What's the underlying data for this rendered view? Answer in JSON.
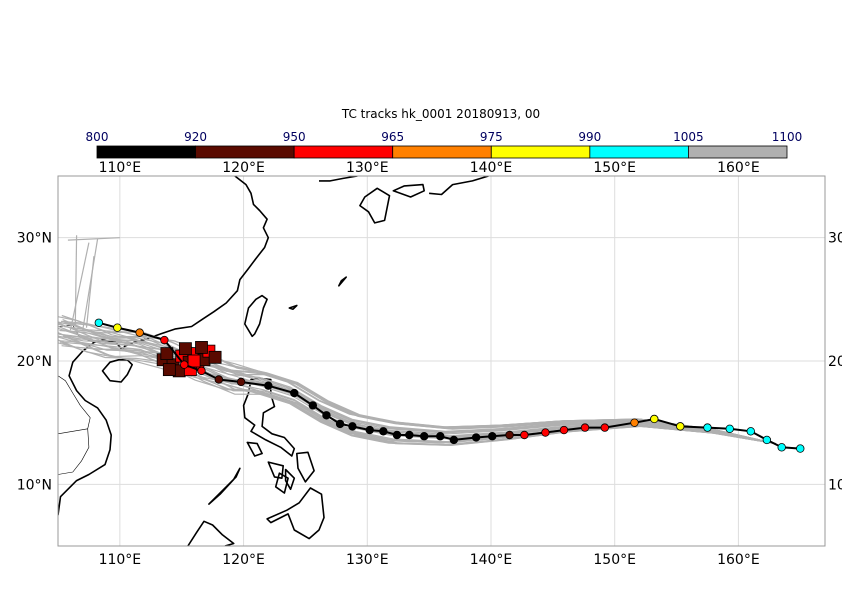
{
  "title": "TC tracks  hk_0001 20180913, 00",
  "colorbar": {
    "boundaries": [
      "800",
      "920",
      "950",
      "965",
      "975",
      "990",
      "1005",
      "1100"
    ],
    "colors": [
      "#000000",
      "#5a0a00",
      "#ff0000",
      "#ff8000",
      "#ffff00",
      "#00ffff",
      "#b0b0b0"
    ]
  },
  "map": {
    "lon_range": [
      105,
      167
    ],
    "lat_range": [
      5,
      35
    ],
    "lon_ticks": [
      {
        "value": 110,
        "label": "110°E"
      },
      {
        "value": 120,
        "label": "120°E"
      },
      {
        "value": 130,
        "label": "130°E"
      },
      {
        "value": 140,
        "label": "140°E"
      },
      {
        "value": 150,
        "label": "150°E"
      },
      {
        "value": 160,
        "label": "160°E"
      }
    ],
    "lat_ticks": [
      {
        "value": 10,
        "label": "10°N"
      },
      {
        "value": 20,
        "label": "20°N"
      },
      {
        "value": 30,
        "label": "30°N"
      }
    ],
    "right_lat_labels": [
      "10",
      "20",
      "30"
    ],
    "grid": true,
    "gridline_color": "#dddddd"
  },
  "chart_data": {
    "type": "scatter",
    "title": "TC tracks  hk_0001 20180913, 00",
    "xlabel": "",
    "ylabel": "",
    "xlim": [
      105,
      167
    ],
    "ylim": [
      5,
      35
    ],
    "ensemble_tracks_color": "#b0b0b0",
    "main_track": {
      "points": [
        {
          "lon": 165.0,
          "lat": 12.9,
          "color": "#00ffff"
        },
        {
          "lon": 163.5,
          "lat": 13.0,
          "color": "#00ffff"
        },
        {
          "lon": 162.3,
          "lat": 13.6,
          "color": "#00ffff"
        },
        {
          "lon": 161.0,
          "lat": 14.3,
          "color": "#00ffff"
        },
        {
          "lon": 159.3,
          "lat": 14.5,
          "color": "#00ffff"
        },
        {
          "lon": 157.5,
          "lat": 14.6,
          "color": "#00ffff"
        },
        {
          "lon": 155.3,
          "lat": 14.7,
          "color": "#ffff00"
        },
        {
          "lon": 153.2,
          "lat": 15.3,
          "color": "#ffff00"
        },
        {
          "lon": 151.6,
          "lat": 15.0,
          "color": "#ff8000"
        },
        {
          "lon": 149.2,
          "lat": 14.6,
          "color": "#ff0000"
        },
        {
          "lon": 147.6,
          "lat": 14.6,
          "color": "#ff0000"
        },
        {
          "lon": 145.9,
          "lat": 14.4,
          "color": "#ff0000"
        },
        {
          "lon": 144.4,
          "lat": 14.2,
          "color": "#ff0000"
        },
        {
          "lon": 142.7,
          "lat": 14.0,
          "color": "#ff0000"
        },
        {
          "lon": 141.5,
          "lat": 14.0,
          "color": "#5a0a00"
        },
        {
          "lon": 140.1,
          "lat": 13.9,
          "color": "#000000"
        },
        {
          "lon": 138.8,
          "lat": 13.8,
          "color": "#000000"
        },
        {
          "lon": 137.0,
          "lat": 13.6,
          "color": "#000000"
        },
        {
          "lon": 135.9,
          "lat": 13.9,
          "color": "#000000"
        },
        {
          "lon": 134.6,
          "lat": 13.9,
          "color": "#000000"
        },
        {
          "lon": 133.4,
          "lat": 14.0,
          "color": "#000000"
        },
        {
          "lon": 132.4,
          "lat": 14.0,
          "color": "#000000"
        },
        {
          "lon": 131.3,
          "lat": 14.3,
          "color": "#000000"
        },
        {
          "lon": 130.2,
          "lat": 14.4,
          "color": "#000000"
        },
        {
          "lon": 128.8,
          "lat": 14.7,
          "color": "#000000"
        },
        {
          "lon": 127.8,
          "lat": 14.9,
          "color": "#000000"
        },
        {
          "lon": 126.7,
          "lat": 15.6,
          "color": "#000000"
        },
        {
          "lon": 125.6,
          "lat": 16.4,
          "color": "#000000"
        },
        {
          "lon": 124.1,
          "lat": 17.4,
          "color": "#000000"
        },
        {
          "lon": 122.0,
          "lat": 18.0,
          "color": "#000000"
        },
        {
          "lon": 119.8,
          "lat": 18.3,
          "color": "#5a0a00"
        },
        {
          "lon": 118.0,
          "lat": 18.5,
          "color": "#5a0a00"
        },
        {
          "lon": 116.6,
          "lat": 19.2,
          "color": "#ff0000"
        },
        {
          "lon": 115.2,
          "lat": 19.7,
          "color": "#ff0000"
        },
        {
          "lon": 113.6,
          "lat": 21.7,
          "color": "#ff0000"
        },
        {
          "lon": 111.6,
          "lat": 22.3,
          "color": "#ff8000"
        },
        {
          "lon": 109.8,
          "lat": 22.7,
          "color": "#ffff00"
        },
        {
          "lon": 108.3,
          "lat": 23.1,
          "color": "#00ffff"
        }
      ]
    },
    "square_markers": [
      {
        "lon": 113.5,
        "lat": 20.1,
        "color": "#5a0a00"
      },
      {
        "lon": 114.3,
        "lat": 19.7,
        "color": "#5a0a00"
      },
      {
        "lon": 114.8,
        "lat": 19.2,
        "color": "#5a0a00"
      },
      {
        "lon": 115.0,
        "lat": 20.4,
        "color": "#ff0000"
      },
      {
        "lon": 115.6,
        "lat": 19.9,
        "color": "#5a0a00"
      },
      {
        "lon": 116.0,
        "lat": 20.6,
        "color": "#ff0000"
      },
      {
        "lon": 116.3,
        "lat": 19.7,
        "color": "#ff0000"
      },
      {
        "lon": 116.8,
        "lat": 20.1,
        "color": "#5a0a00"
      },
      {
        "lon": 117.2,
        "lat": 20.8,
        "color": "#ff0000"
      },
      {
        "lon": 117.7,
        "lat": 20.3,
        "color": "#5a0a00"
      },
      {
        "lon": 115.3,
        "lat": 21.0,
        "color": "#5a0a00"
      },
      {
        "lon": 116.6,
        "lat": 21.1,
        "color": "#5a0a00"
      },
      {
        "lon": 114.0,
        "lat": 19.3,
        "color": "#5a0a00"
      },
      {
        "lon": 115.7,
        "lat": 19.3,
        "color": "#ff0000"
      },
      {
        "lon": 113.8,
        "lat": 20.6,
        "color": "#5a0a00"
      },
      {
        "lon": 116.0,
        "lat": 20.0,
        "color": "#ff0000"
      }
    ]
  }
}
